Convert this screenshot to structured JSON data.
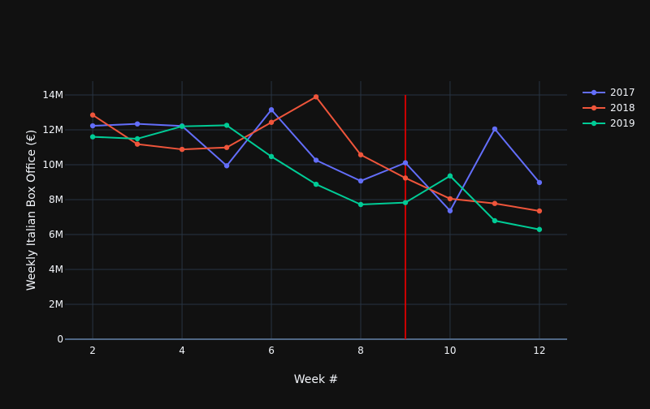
{
  "chart_data": {
    "type": "line",
    "title": "",
    "xlabel": "Week #",
    "ylabel": "Weekly Italian Box Office (€)",
    "xlim": [
      1.38,
      12.62
    ],
    "ylim": [
      0,
      14790000
    ],
    "xticks": [
      2,
      4,
      6,
      8,
      10,
      12
    ],
    "xtick_labels": [
      "2",
      "4",
      "6",
      "8",
      "10",
      "12"
    ],
    "yticks": [
      0,
      2000000,
      4000000,
      6000000,
      8000000,
      10000000,
      12000000,
      14000000
    ],
    "ytick_labels": [
      "0",
      "2M",
      "4M",
      "6M",
      "8M",
      "10M",
      "12M",
      "14M"
    ],
    "grid": true,
    "legend_position": "top-right",
    "x": [
      2,
      3,
      4,
      5,
      6,
      7,
      8,
      9,
      10,
      11,
      12
    ],
    "series": [
      {
        "name": "2017",
        "color": "#636efa",
        "values": [
          12230000,
          12340000,
          12220000,
          9940000,
          13150000,
          10260000,
          9070000,
          10110000,
          7360000,
          12050000,
          8980000
        ]
      },
      {
        "name": "2018",
        "color": "#ef553b",
        "values": [
          12850000,
          11180000,
          10880000,
          10990000,
          12430000,
          13890000,
          10570000,
          9240000,
          8050000,
          7780000,
          7350000
        ]
      },
      {
        "name": "2019",
        "color": "#00cc96",
        "values": [
          11600000,
          11490000,
          12200000,
          12260000,
          10470000,
          8880000,
          7720000,
          7830000,
          9360000,
          6790000,
          6290000
        ]
      }
    ],
    "vline": {
      "x": 9,
      "y0": 0,
      "y1": 14000000,
      "color": "#cc0000"
    }
  }
}
